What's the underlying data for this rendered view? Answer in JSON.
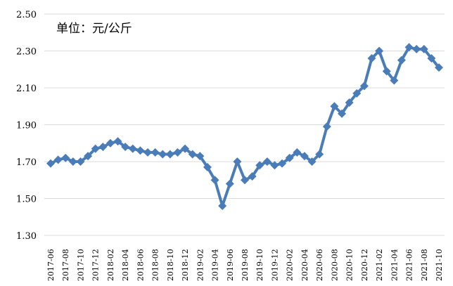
{
  "chart_data": {
    "type": "line",
    "title": "",
    "unit_note": "单位：元/公斤",
    "xlabel": "",
    "ylabel": "",
    "ylim": [
      1.3,
      2.5
    ],
    "yticks": [
      "1.30",
      "1.50",
      "1.70",
      "1.90",
      "2.10",
      "2.30",
      "2.50"
    ],
    "grid": true,
    "legend": "none",
    "colors": {
      "series": "#4a7cb8",
      "grid": "#d9d9d9",
      "text": "#000000"
    },
    "x_tick_labels": [
      "2017-06",
      "2017-08",
      "2017-10",
      "2017-12",
      "2018-02",
      "2018-04",
      "2018-06",
      "2018-08",
      "2018-10",
      "2018-12",
      "2019-02",
      "2019-04",
      "2019-06",
      "2019-08",
      "2019-10",
      "2019-12",
      "2020-02",
      "2020-04",
      "2020-06",
      "2020-08",
      "2020-10",
      "2020-12",
      "2021-02",
      "2021-04",
      "2021-06",
      "2021-08",
      "2021-10"
    ],
    "x": [
      "2017-06",
      "2017-07",
      "2017-08",
      "2017-09",
      "2017-10",
      "2017-11",
      "2017-12",
      "2018-01",
      "2018-02",
      "2018-03",
      "2018-04",
      "2018-05",
      "2018-06",
      "2018-07",
      "2018-08",
      "2018-09",
      "2018-10",
      "2018-11",
      "2018-12",
      "2019-01",
      "2019-02",
      "2019-03",
      "2019-04",
      "2019-05",
      "2019-06",
      "2019-07",
      "2019-08",
      "2019-09",
      "2019-10",
      "2019-11",
      "2019-12",
      "2020-01",
      "2020-02",
      "2020-03",
      "2020-04",
      "2020-05",
      "2020-06",
      "2020-07",
      "2020-08",
      "2020-09",
      "2020-10",
      "2020-11",
      "2020-12",
      "2021-01",
      "2021-02",
      "2021-03",
      "2021-04",
      "2021-05",
      "2021-06",
      "2021-07",
      "2021-08",
      "2021-09",
      "2021-10"
    ],
    "series": [
      {
        "values": [
          1.69,
          1.71,
          1.72,
          1.7,
          1.7,
          1.73,
          1.77,
          1.78,
          1.8,
          1.81,
          1.78,
          1.77,
          1.76,
          1.75,
          1.75,
          1.74,
          1.74,
          1.75,
          1.77,
          1.74,
          1.73,
          1.67,
          1.6,
          1.46,
          1.58,
          1.7,
          1.6,
          1.62,
          1.68,
          1.7,
          1.68,
          1.69,
          1.72,
          1.75,
          1.73,
          1.7,
          1.74,
          1.89,
          2.0,
          1.96,
          2.02,
          2.07,
          2.11,
          2.26,
          2.3,
          2.19,
          2.14,
          2.25,
          2.32,
          2.31,
          2.31,
          2.26,
          2.21
        ]
      }
    ]
  }
}
